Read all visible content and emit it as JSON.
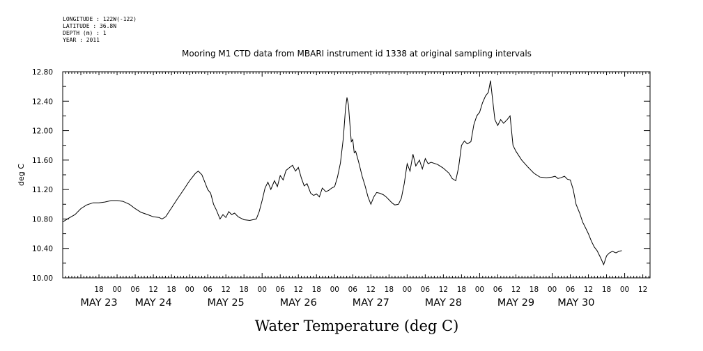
{
  "metadata": {
    "lines": [
      "LONGITUDE : 122W(-122)",
      "LATITUDE : 36.8N",
      "DEPTH (m) : 1",
      "YEAR : 2011"
    ]
  },
  "chart_data": {
    "type": "line",
    "title": "Mooring M1 CTD data from MBARI instrument id 1338 at original sampling intervals",
    "ylabel": "deg C",
    "xlabel": "Water Temperature (deg C)",
    "ylim": [
      10.0,
      12.8
    ],
    "yticks": [
      "10.00",
      "10.40",
      "10.80",
      "11.20",
      "11.60",
      "12.00",
      "12.40",
      "12.80"
    ],
    "x_unit": "days since May 23 00:00",
    "xlim": [
      -0.75,
      7.35
    ],
    "hour_ticks": [
      {
        "x": -0.25,
        "label": "18"
      },
      {
        "x": 0.0,
        "label": "00"
      },
      {
        "x": 0.25,
        "label": "06"
      },
      {
        "x": 0.5,
        "label": "12"
      },
      {
        "x": 0.75,
        "label": "18"
      },
      {
        "x": 1.0,
        "label": "00"
      },
      {
        "x": 1.25,
        "label": "06"
      },
      {
        "x": 1.5,
        "label": "12"
      },
      {
        "x": 1.75,
        "label": "18"
      },
      {
        "x": 2.0,
        "label": "00"
      },
      {
        "x": 2.25,
        "label": "06"
      },
      {
        "x": 2.5,
        "label": "12"
      },
      {
        "x": 2.75,
        "label": "18"
      },
      {
        "x": 3.0,
        "label": "00"
      },
      {
        "x": 3.25,
        "label": "06"
      },
      {
        "x": 3.5,
        "label": "12"
      },
      {
        "x": 3.75,
        "label": "18"
      },
      {
        "x": 4.0,
        "label": "00"
      },
      {
        "x": 4.25,
        "label": "06"
      },
      {
        "x": 4.5,
        "label": "12"
      },
      {
        "x": 4.75,
        "label": "18"
      },
      {
        "x": 5.0,
        "label": "00"
      },
      {
        "x": 5.25,
        "label": "06"
      },
      {
        "x": 5.5,
        "label": "12"
      },
      {
        "x": 5.75,
        "label": "18"
      },
      {
        "x": 6.0,
        "label": "00"
      },
      {
        "x": 6.25,
        "label": "06"
      },
      {
        "x": 6.5,
        "label": "12"
      },
      {
        "x": 6.75,
        "label": "18"
      },
      {
        "x": 7.0,
        "label": "00"
      },
      {
        "x": 7.25,
        "label": "12"
      }
    ],
    "day_labels": [
      {
        "x": -0.25,
        "label": "MAY 23"
      },
      {
        "x": 0.5,
        "label": "MAY 24"
      },
      {
        "x": 1.5,
        "label": "MAY 25"
      },
      {
        "x": 2.5,
        "label": "MAY 26"
      },
      {
        "x": 3.5,
        "label": "MAY 27"
      },
      {
        "x": 4.5,
        "label": "MAY 28"
      },
      {
        "x": 5.5,
        "label": "MAY 29"
      },
      {
        "x": 6.33,
        "label": "MAY 30"
      }
    ],
    "series": [
      {
        "points": [
          [
            -0.75,
            10.76
          ],
          [
            -0.67,
            10.81
          ],
          [
            -0.58,
            10.86
          ],
          [
            -0.5,
            10.94
          ],
          [
            -0.42,
            10.99
          ],
          [
            -0.33,
            11.02
          ],
          [
            -0.25,
            11.02
          ],
          [
            -0.17,
            11.03
          ],
          [
            -0.08,
            11.05
          ],
          [
            0.0,
            11.05
          ],
          [
            0.08,
            11.04
          ],
          [
            0.17,
            11.0
          ],
          [
            0.25,
            10.94
          ],
          [
            0.33,
            10.89
          ],
          [
            0.42,
            10.86
          ],
          [
            0.5,
            10.83
          ],
          [
            0.58,
            10.82
          ],
          [
            0.62,
            10.8
          ],
          [
            0.67,
            10.83
          ],
          [
            0.75,
            10.95
          ],
          [
            0.83,
            11.07
          ],
          [
            0.92,
            11.2
          ],
          [
            1.0,
            11.32
          ],
          [
            1.08,
            11.42
          ],
          [
            1.12,
            11.45
          ],
          [
            1.17,
            11.4
          ],
          [
            1.21,
            11.3
          ],
          [
            1.25,
            11.2
          ],
          [
            1.29,
            11.15
          ],
          [
            1.33,
            11.0
          ],
          [
            1.37,
            10.92
          ],
          [
            1.42,
            10.8
          ],
          [
            1.46,
            10.86
          ],
          [
            1.5,
            10.82
          ],
          [
            1.54,
            10.9
          ],
          [
            1.58,
            10.86
          ],
          [
            1.62,
            10.88
          ],
          [
            1.67,
            10.83
          ],
          [
            1.71,
            10.81
          ],
          [
            1.75,
            10.79
          ],
          [
            1.83,
            10.78
          ],
          [
            1.92,
            10.8
          ],
          [
            1.96,
            10.9
          ],
          [
            2.0,
            11.05
          ],
          [
            2.04,
            11.22
          ],
          [
            2.08,
            11.3
          ],
          [
            2.12,
            11.2
          ],
          [
            2.17,
            11.32
          ],
          [
            2.21,
            11.24
          ],
          [
            2.25,
            11.39
          ],
          [
            2.29,
            11.33
          ],
          [
            2.33,
            11.46
          ],
          [
            2.38,
            11.5
          ],
          [
            2.42,
            11.53
          ],
          [
            2.46,
            11.45
          ],
          [
            2.5,
            11.5
          ],
          [
            2.54,
            11.36
          ],
          [
            2.58,
            11.25
          ],
          [
            2.62,
            11.28
          ],
          [
            2.67,
            11.15
          ],
          [
            2.71,
            11.12
          ],
          [
            2.75,
            11.14
          ],
          [
            2.79,
            11.1
          ],
          [
            2.83,
            11.22
          ],
          [
            2.88,
            11.17
          ],
          [
            2.92,
            11.19
          ],
          [
            2.96,
            11.22
          ],
          [
            3.0,
            11.24
          ],
          [
            3.04,
            11.37
          ],
          [
            3.08,
            11.56
          ],
          [
            3.12,
            11.9
          ],
          [
            3.15,
            12.3
          ],
          [
            3.17,
            12.45
          ],
          [
            3.19,
            12.35
          ],
          [
            3.21,
            12.1
          ],
          [
            3.23,
            11.85
          ],
          [
            3.25,
            11.88
          ],
          [
            3.27,
            11.7
          ],
          [
            3.29,
            11.72
          ],
          [
            3.33,
            11.58
          ],
          [
            3.38,
            11.38
          ],
          [
            3.42,
            11.25
          ],
          [
            3.46,
            11.1
          ],
          [
            3.5,
            11.0
          ],
          [
            3.54,
            11.1
          ],
          [
            3.58,
            11.16
          ],
          [
            3.62,
            11.15
          ],
          [
            3.67,
            11.13
          ],
          [
            3.71,
            11.1
          ],
          [
            3.75,
            11.06
          ],
          [
            3.79,
            11.02
          ],
          [
            3.83,
            10.99
          ],
          [
            3.88,
            11.0
          ],
          [
            3.92,
            11.08
          ],
          [
            3.96,
            11.28
          ],
          [
            4.0,
            11.55
          ],
          [
            4.04,
            11.45
          ],
          [
            4.08,
            11.68
          ],
          [
            4.12,
            11.52
          ],
          [
            4.17,
            11.6
          ],
          [
            4.21,
            11.48
          ],
          [
            4.25,
            11.62
          ],
          [
            4.29,
            11.55
          ],
          [
            4.33,
            11.57
          ],
          [
            4.42,
            11.54
          ],
          [
            4.5,
            11.49
          ],
          [
            4.58,
            11.42
          ],
          [
            4.62,
            11.35
          ],
          [
            4.67,
            11.32
          ],
          [
            4.71,
            11.5
          ],
          [
            4.75,
            11.8
          ],
          [
            4.79,
            11.86
          ],
          [
            4.83,
            11.82
          ],
          [
            4.88,
            11.85
          ],
          [
            4.92,
            12.08
          ],
          [
            4.96,
            12.2
          ],
          [
            5.0,
            12.25
          ],
          [
            5.04,
            12.38
          ],
          [
            5.08,
            12.47
          ],
          [
            5.12,
            12.52
          ],
          [
            5.15,
            12.68
          ],
          [
            5.17,
            12.5
          ],
          [
            5.21,
            12.15
          ],
          [
            5.25,
            12.07
          ],
          [
            5.29,
            12.15
          ],
          [
            5.33,
            12.1
          ],
          [
            5.38,
            12.15
          ],
          [
            5.42,
            12.2
          ],
          [
            5.46,
            11.8
          ],
          [
            5.5,
            11.72
          ],
          [
            5.58,
            11.6
          ],
          [
            5.67,
            11.5
          ],
          [
            5.75,
            11.42
          ],
          [
            5.83,
            11.37
          ],
          [
            5.92,
            11.36
          ],
          [
            6.0,
            11.37
          ],
          [
            6.04,
            11.38
          ],
          [
            6.08,
            11.35
          ],
          [
            6.12,
            11.36
          ],
          [
            6.17,
            11.38
          ],
          [
            6.21,
            11.34
          ],
          [
            6.25,
            11.33
          ],
          [
            6.29,
            11.2
          ],
          [
            6.33,
            11.0
          ],
          [
            6.38,
            10.88
          ],
          [
            6.42,
            10.76
          ],
          [
            6.46,
            10.68
          ],
          [
            6.5,
            10.6
          ],
          [
            6.54,
            10.5
          ],
          [
            6.58,
            10.42
          ],
          [
            6.62,
            10.37
          ],
          [
            6.67,
            10.27
          ],
          [
            6.71,
            10.18
          ],
          [
            6.75,
            10.3
          ],
          [
            6.79,
            10.34
          ],
          [
            6.83,
            10.36
          ],
          [
            6.88,
            10.34
          ],
          [
            6.92,
            10.36
          ],
          [
            6.96,
            10.37
          ]
        ]
      }
    ]
  }
}
